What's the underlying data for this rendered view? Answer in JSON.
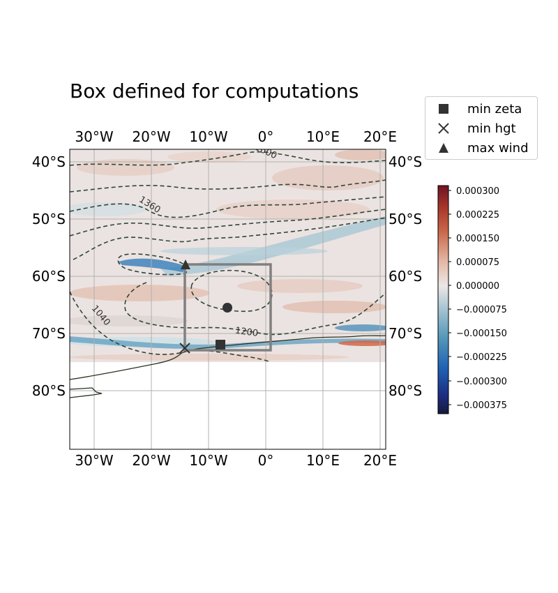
{
  "chart_data": {
    "type": "heatmap",
    "title": "Box defined for computations",
    "x_ticks": [
      "30°W",
      "20°W",
      "10°W",
      "0°",
      "10°E",
      "20°E"
    ],
    "x_tick_values": [
      -30,
      -20,
      -10,
      0,
      10,
      20
    ],
    "y_ticks": [
      "40°S",
      "50°S",
      "60°S",
      "70°S",
      "80°S"
    ],
    "y_tick_values": [
      -40,
      -50,
      -60,
      -70,
      -80
    ],
    "xlim": [
      -34.5,
      20.5
    ],
    "ylim": [
      -90,
      -38
    ],
    "field_extent_lat": [
      -38,
      -75
    ],
    "grid": true,
    "colorbar": {
      "ticks": [
        "0.000300",
        "0.000225",
        "0.000150",
        "0.000075",
        "0.000000",
        "−0.000075",
        "−0.000150",
        "−0.000225",
        "−0.000300",
        "−0.000375"
      ],
      "tick_values": [
        0.0003,
        0.000225,
        0.00015,
        7.5e-05,
        0,
        -7.5e-05,
        -0.00015,
        -0.000225,
        -0.0003,
        -0.000375
      ],
      "range": [
        -0.00042,
        0.00033
      ]
    },
    "contour_labels": [
      "1600",
      "1360",
      "1200",
      "1040"
    ],
    "box": {
      "lon": [
        -14.3,
        0.8
      ],
      "lat": [
        -58,
        -73
      ]
    },
    "markers": [
      {
        "name": "min zeta",
        "symbol": "square",
        "lon": -8.2,
        "lat": -72
      },
      {
        "name": "min hgt",
        "symbol": "x",
        "lon": -14.3,
        "lat": -72.5
      },
      {
        "name": "max wind",
        "symbol": "triangle",
        "lon": -14.3,
        "lat": -57.8
      },
      {
        "name": "",
        "symbol": "circle",
        "lon": -6.7,
        "lat": -65.3
      }
    ],
    "legend": {
      "placement": "upper-right outside",
      "entries": [
        "min zeta",
        "min hgt",
        "max wind"
      ]
    }
  },
  "colors": {
    "marker": "#333333",
    "box": "#808080",
    "contour": "#2f4538",
    "coast": "#2a3320",
    "grid": "#b0b0b0"
  }
}
